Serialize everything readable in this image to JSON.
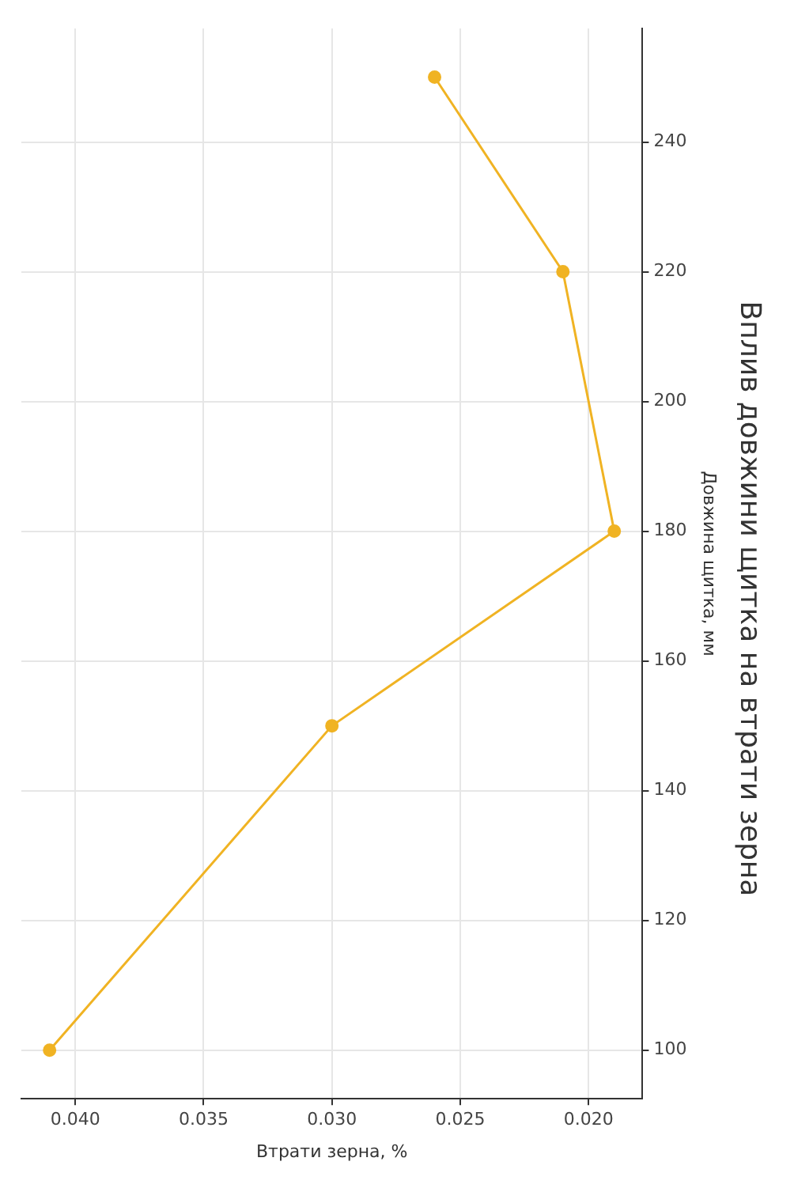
{
  "chart_data": {
    "type": "line",
    "title": "Вплив довжини щитка на втрати зерна",
    "xlabel": "Втрати зерна, %",
    "ylabel": "Довжина щитка, мм",
    "x": [
      0.041,
      0.03,
      0.019,
      0.021,
      0.026
    ],
    "series": [
      {
        "color": "#f0b323",
        "values": [
          100,
          150,
          180,
          220,
          250
        ]
      }
    ],
    "xlim": [
      0.0421,
      0.0179
    ],
    "xticks": [
      {
        "value": 0.04,
        "label": "0.040"
      },
      {
        "value": 0.035,
        "label": "0.035"
      },
      {
        "value": 0.03,
        "label": "0.030"
      },
      {
        "value": 0.025,
        "label": "0.025"
      },
      {
        "value": 0.02,
        "label": "0.020"
      }
    ],
    "ylim": [
      92.5,
      257.5
    ],
    "yticks": [
      100,
      120,
      140,
      160,
      180,
      200,
      220,
      240
    ],
    "grid": true,
    "legend": false,
    "marker": "circle",
    "line_style": "solid"
  }
}
